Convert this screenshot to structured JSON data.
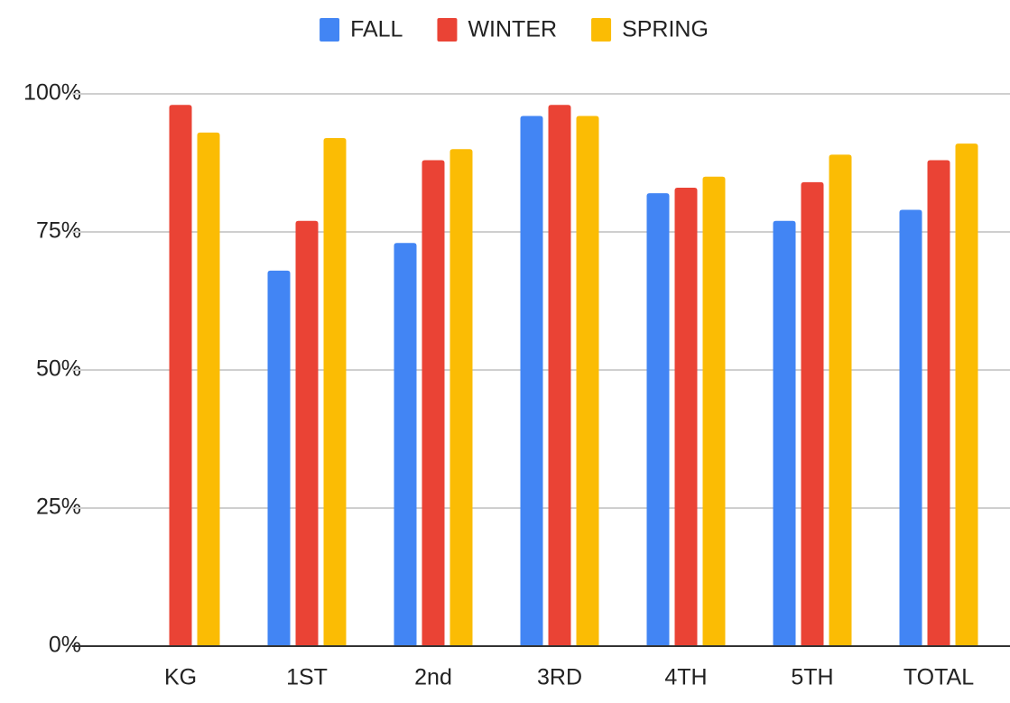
{
  "chart_data": {
    "type": "bar",
    "categories": [
      "KG",
      "1ST",
      "2nd",
      "3RD",
      "4TH",
      "5TH",
      "TOTAL"
    ],
    "series": [
      {
        "name": "FALL",
        "color": "#4285f4",
        "values": [
          null,
          68,
          73,
          96,
          82,
          77,
          79
        ]
      },
      {
        "name": "WINTER",
        "color": "#ea4335",
        "values": [
          98,
          77,
          88,
          98,
          83,
          84,
          88
        ]
      },
      {
        "name": "SPRING",
        "color": "#fbbc04",
        "values": [
          93,
          92,
          90,
          96,
          85,
          89,
          91
        ]
      }
    ],
    "ylim": [
      0,
      100
    ],
    "yticks": [
      {
        "value": 0,
        "label": "0%"
      },
      {
        "value": 25,
        "label": "25%"
      },
      {
        "value": 50,
        "label": "50%"
      },
      {
        "value": 75,
        "label": "75%"
      },
      {
        "value": 100,
        "label": "100%"
      }
    ],
    "grid": true,
    "legend": "top"
  }
}
